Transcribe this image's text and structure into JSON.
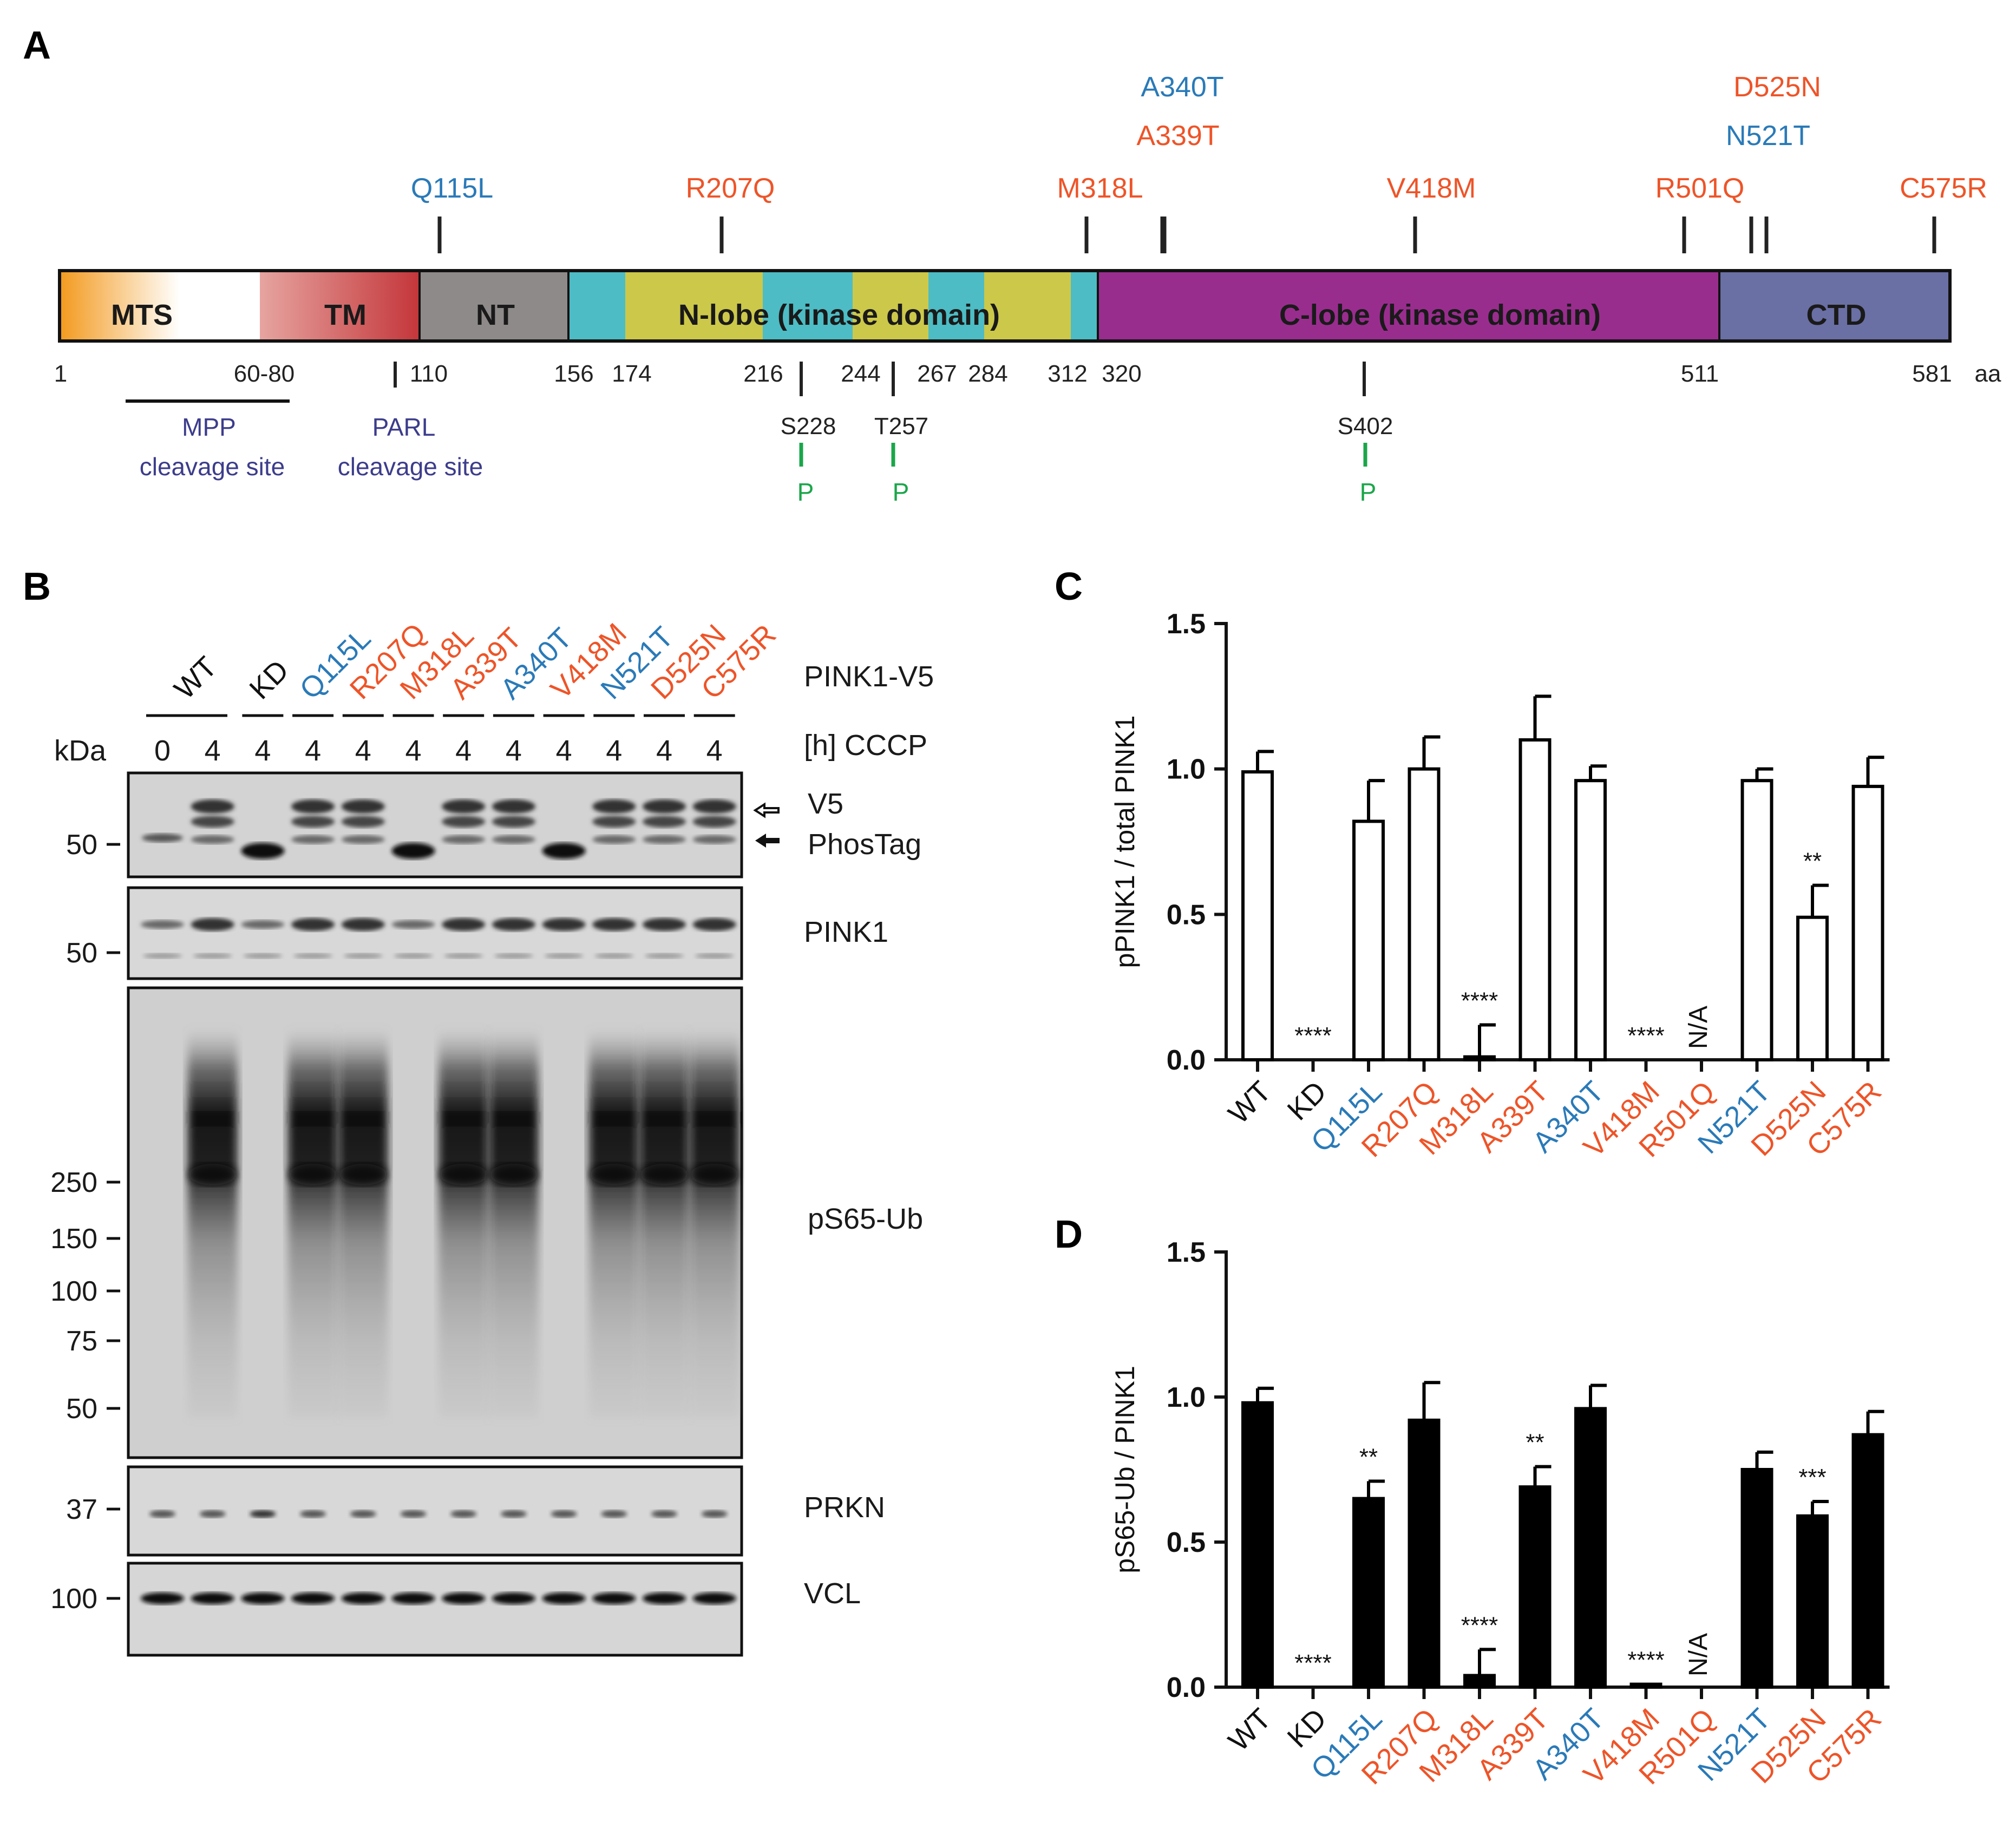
{
  "panels": {
    "a": "A",
    "b": "B",
    "c": "C",
    "d": "D"
  },
  "colors": {
    "blue": "#2a7ab8",
    "orange": "#ee5428",
    "navy": "#3c3c8c",
    "green": "#1aa64a",
    "black": "#111111"
  },
  "domain_map": {
    "unit": "aa",
    "regions": [
      {
        "label": "MTS"
      },
      {
        "label": "TM"
      },
      {
        "label": "NT"
      },
      {
        "label": "N-lobe (kinase domain)"
      },
      {
        "label": "C-lobe (kinase domain)"
      },
      {
        "label": "CTD"
      }
    ],
    "mutations": [
      {
        "label": "Q115L",
        "color": "blue"
      },
      {
        "label": "R207Q",
        "color": "orange"
      },
      {
        "label": "M318L",
        "color": "orange"
      },
      {
        "label": "A339T",
        "color": "orange"
      },
      {
        "label": "A340T",
        "color": "blue"
      },
      {
        "label": "V418M",
        "color": "orange"
      },
      {
        "label": "R501Q",
        "color": "orange"
      },
      {
        "label": "N521T",
        "color": "blue"
      },
      {
        "label": "D525N",
        "color": "orange"
      },
      {
        "label": "C575R",
        "color": "orange"
      }
    ],
    "positions": [
      "1",
      "60-80",
      "110",
      "156",
      "174",
      "216",
      "244",
      "267",
      "284",
      "312",
      "320",
      "511",
      "581"
    ],
    "cleavage_sites": [
      {
        "name": "MPP",
        "text": "cleavage site"
      },
      {
        "name": "PARL",
        "text": "cleavage site"
      }
    ],
    "phospho_sites": [
      "S228",
      "T257",
      "S402"
    ],
    "phospho_mark": "P"
  },
  "blot": {
    "header_label": "PINK1-V5",
    "cccp_label": "[h] CCCP",
    "kda_label": "kDa",
    "lanes": [
      {
        "label": "WT",
        "color": "black",
        "cccp": "0"
      },
      {
        "label": "",
        "color": "black",
        "cccp": "4"
      },
      {
        "label": "KD",
        "color": "black",
        "cccp": "4"
      },
      {
        "label": "Q115L",
        "color": "blue",
        "cccp": "4"
      },
      {
        "label": "R207Q",
        "color": "orange",
        "cccp": "4"
      },
      {
        "label": "M318L",
        "color": "orange",
        "cccp": "4"
      },
      {
        "label": "A339T",
        "color": "orange",
        "cccp": "4"
      },
      {
        "label": "A340T",
        "color": "blue",
        "cccp": "4"
      },
      {
        "label": "V418M",
        "color": "orange",
        "cccp": "4"
      },
      {
        "label": "N521T",
        "color": "blue",
        "cccp": "4"
      },
      {
        "label": "D525N",
        "color": "orange",
        "cccp": "4"
      },
      {
        "label": "C575R",
        "color": "orange",
        "cccp": "4"
      }
    ],
    "strips": [
      {
        "labels": [
          "V5",
          "PhosTag"
        ],
        "markers": [
          "50"
        ]
      },
      {
        "labels": [
          "PINK1"
        ],
        "markers": [
          "50"
        ]
      },
      {
        "labels": [
          "pS65-Ub"
        ],
        "markers": [
          "250",
          "150",
          "100",
          "75",
          "50"
        ]
      },
      {
        "labels": [
          "PRKN"
        ],
        "markers": [
          "37"
        ]
      },
      {
        "labels": [
          "VCL"
        ],
        "markers": [
          "100"
        ]
      }
    ]
  },
  "chart_data": [
    {
      "panel": "C",
      "type": "bar",
      "fill": "white",
      "ylabel": "pPINK1 / total PINK1",
      "ylim": [
        0,
        1.5
      ],
      "yticks": [
        "0.0",
        "0.5",
        "1.0",
        "1.5"
      ],
      "categories": [
        "WT",
        "KD",
        "Q115L",
        "R207Q",
        "M318L",
        "A339T",
        "A340T",
        "V418M",
        "R501Q",
        "N521T",
        "D525N",
        "C575R"
      ],
      "category_colors": [
        "black",
        "black",
        "blue",
        "orange",
        "orange",
        "orange",
        "blue",
        "orange",
        "orange",
        "blue",
        "orange",
        "orange"
      ],
      "values": [
        0.99,
        0,
        0.82,
        1.0,
        0.01,
        1.1,
        0.96,
        0,
        0,
        0.96,
        0.49,
        0.94
      ],
      "errors": [
        0.07,
        0,
        0.14,
        0.11,
        0.11,
        0.15,
        0.05,
        0,
        0,
        0.04,
        0.11,
        0.1
      ],
      "annotations": [
        "",
        "****",
        "",
        "",
        "****",
        "",
        "",
        "****",
        "N/A",
        "",
        "**",
        ""
      ]
    },
    {
      "panel": "D",
      "type": "bar",
      "fill": "black",
      "ylabel": "pS65-Ub / PINK1",
      "ylim": [
        0,
        1.5
      ],
      "yticks": [
        "0.0",
        "0.5",
        "1.0",
        "1.5"
      ],
      "categories": [
        "WT",
        "KD",
        "Q115L",
        "R207Q",
        "M318L",
        "A339T",
        "A340T",
        "V418M",
        "R501Q",
        "N521T",
        "D525N",
        "C575R"
      ],
      "category_colors": [
        "black",
        "black",
        "blue",
        "orange",
        "orange",
        "orange",
        "blue",
        "orange",
        "orange",
        "blue",
        "orange",
        "orange"
      ],
      "values": [
        0.98,
        0,
        0.65,
        0.92,
        0.04,
        0.69,
        0.96,
        0.01,
        0,
        0.75,
        0.59,
        0.87
      ],
      "errors": [
        0.05,
        0,
        0.06,
        0.13,
        0.09,
        0.07,
        0.08,
        0,
        0,
        0.06,
        0.05,
        0.08
      ],
      "annotations": [
        "",
        "****",
        "**",
        "",
        "****",
        "**",
        "",
        "****",
        "N/A",
        "",
        "***",
        ""
      ]
    }
  ]
}
